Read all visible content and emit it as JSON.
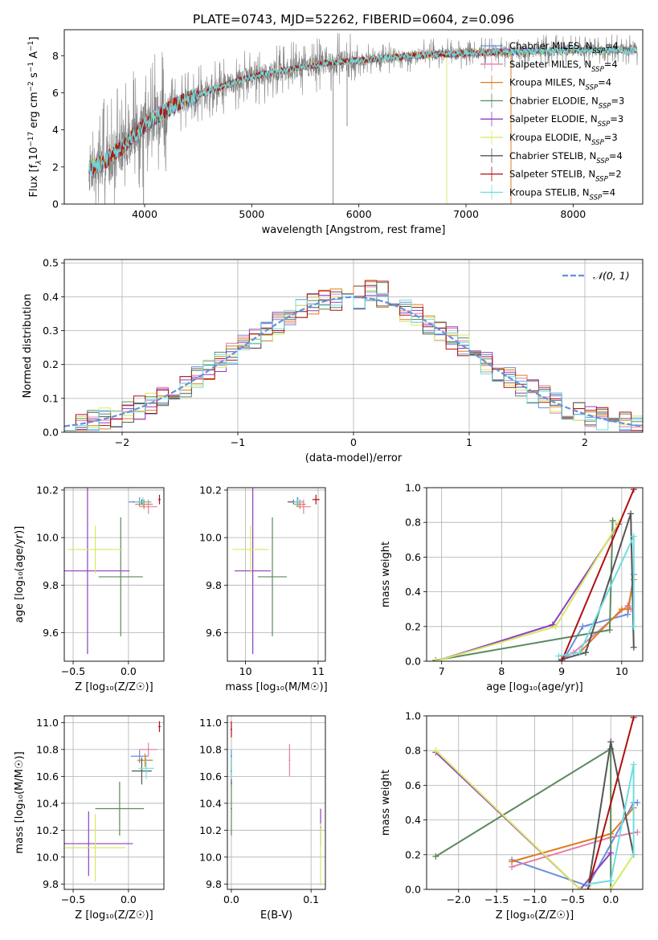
{
  "figure": {
    "title": "PLATE=0743, MJD=52262, FIBERID=0604, z=0.096"
  },
  "colors": {
    "chabrier_miles": "#6a8fdb",
    "salpeter_miles": "#e07faa",
    "kroupa_miles": "#e07c1f",
    "chabrier_elodie": "#5a8a5e",
    "salpeter_elodie": "#8e3fbf",
    "kroupa_elodie": "#d8e860",
    "chabrier_stelib": "#555555",
    "salpeter_stelib": "#b01010",
    "kroupa_stelib": "#6fdde0",
    "data_gray": "#808080",
    "grid": "#b0b0b0"
  },
  "chart_data": [
    {
      "id": "spectrum",
      "type": "line",
      "xlabel": "wavelength [Angstrom, rest frame]",
      "ylabel_parts": [
        "Flux [f",
        "λ",
        "10",
        "−17",
        " erg cm",
        "−2",
        " s",
        "−1",
        " A",
        "−1",
        "]"
      ],
      "xlim": [
        3250,
        8650
      ],
      "ylim": [
        0,
        9.4
      ],
      "xticks": [
        4000,
        5000,
        6000,
        7000,
        8000
      ],
      "yticks": [
        0,
        2,
        4,
        6,
        8
      ],
      "continuum_x": [
        3480,
        3600,
        3800,
        3950,
        4100,
        4300,
        4500,
        4700,
        4900,
        5100,
        5300,
        5500,
        5700,
        5900,
        6100,
        6300,
        6500,
        6700,
        6900,
        7100,
        7300,
        7500,
        7700,
        7900,
        8100,
        8300,
        8500,
        8600
      ],
      "continuum_y": [
        1.9,
        2.2,
        3.1,
        4.0,
        4.7,
        5.4,
        5.9,
        6.3,
        6.7,
        7.0,
        7.2,
        7.4,
        7.6,
        7.7,
        7.8,
        7.9,
        8.0,
        8.05,
        8.1,
        8.15,
        8.2,
        8.2,
        8.25,
        8.3,
        8.3,
        8.3,
        8.3,
        8.3
      ],
      "legend": [
        {
          "label": "Chabrier MILES, N",
          "sub": "SSP",
          "value": "=4",
          "color_key": "chabrier_miles"
        },
        {
          "label": "Salpeter MILES, N",
          "sub": "SSP",
          "value": "=4",
          "color_key": "salpeter_miles"
        },
        {
          "label": "Kroupa MILES, N",
          "sub": "SSP",
          "value": "=4",
          "color_key": "kroupa_miles"
        },
        {
          "label": "Chabrier ELODIE, N",
          "sub": "SSP",
          "value": "=3",
          "color_key": "chabrier_elodie"
        },
        {
          "label": "Salpeter ELODIE, N",
          "sub": "SSP",
          "value": "=3",
          "color_key": "salpeter_elodie"
        },
        {
          "label": "Kroupa ELODIE, N",
          "sub": "SSP",
          "value": "=3",
          "color_key": "kroupa_elodie"
        },
        {
          "label": "Chabrier STELIB, N",
          "sub": "SSP",
          "value": "=4",
          "color_key": "chabrier_stelib"
        },
        {
          "label": "Salpeter STELIB, N",
          "sub": "SSP",
          "value": "=2",
          "color_key": "salpeter_stelib"
        },
        {
          "label": "Kroupa STELIB, N",
          "sub": "SSP",
          "value": "=4",
          "color_key": "kroupa_stelib"
        }
      ]
    },
    {
      "id": "residuals",
      "type": "histogram",
      "xlabel": "(data-model)/error",
      "ylabel": "Normed distribution",
      "xlim": [
        -2.5,
        2.5
      ],
      "ylim": [
        0,
        0.51
      ],
      "xticks": [
        -2,
        -1,
        0,
        1,
        2
      ],
      "xtick_labels": [
        "−2",
        "−1",
        "0",
        "1",
        "2"
      ],
      "yticks": [
        0,
        0.1,
        0.2,
        0.3,
        0.4,
        0.5
      ],
      "ytick_labels": [
        "0.0",
        "0.1",
        "0.2",
        "0.3",
        "0.4",
        "0.5"
      ],
      "bin_width": 0.1,
      "legend": "𝒩(0, 1)",
      "gaussian_color_key": "chabrier_miles"
    },
    {
      "id": "age_vs_Z",
      "type": "errorbar",
      "xlabel": "Z [log₁₀(Z/Z☉)]",
      "ylabel": "age  [log₁₀(age/yr)]",
      "xlim": [
        -0.58,
        0.32
      ],
      "ylim": [
        9.48,
        10.21
      ],
      "xticks": [
        -0.5,
        0.0
      ],
      "xtick_labels": [
        "−0.5",
        "0.0"
      ],
      "yticks": [
        9.6,
        9.8,
        10.0,
        10.2
      ],
      "ytick_labels": [
        "9.6",
        "9.8",
        "10.0",
        "10.2"
      ],
      "points": [
        {
          "key": "chabrier_miles",
          "x": 0.1,
          "xerr": 0.1,
          "y": 10.15,
          "yerr": 0.02
        },
        {
          "key": "salpeter_miles",
          "x": 0.18,
          "xerr": 0.08,
          "y": 10.13,
          "yerr": 0.03
        },
        {
          "key": "kroupa_miles",
          "x": 0.14,
          "xerr": 0.08,
          "y": 10.14,
          "yerr": 0.02
        },
        {
          "key": "chabrier_elodie",
          "x": -0.07,
          "xerr": 0.2,
          "y": 9.835,
          "yerr": 0.25
        },
        {
          "key": "salpeter_elodie",
          "x": -0.37,
          "xerr": 0.38,
          "y": 9.86,
          "yerr": 0.35
        },
        {
          "key": "kroupa_elodie",
          "x": -0.3,
          "xerr": 0.25,
          "y": 9.95,
          "yerr": 0.1
        },
        {
          "key": "chabrier_stelib",
          "x": 0.12,
          "xerr": 0.08,
          "y": 10.15,
          "yerr": 0.01
        },
        {
          "key": "salpeter_stelib",
          "x": 0.28,
          "xerr": 0.01,
          "y": 10.16,
          "yerr": 0.02
        },
        {
          "key": "kroupa_stelib",
          "x": 0.13,
          "xerr": 0.08,
          "y": 10.15,
          "yerr": 0.02
        }
      ]
    },
    {
      "id": "age_vs_mass",
      "type": "errorbar",
      "xlabel": "mass [log₁₀(M/M☉)]",
      "ylabel": "",
      "xlim": [
        9.75,
        11.1
      ],
      "ylim": [
        9.48,
        10.21
      ],
      "xticks": [
        10,
        11
      ],
      "xtick_labels": [
        "10",
        "11"
      ],
      "yticks": [
        9.6,
        9.8,
        10.0,
        10.2
      ],
      "ytick_labels": [
        "9.6",
        "9.8",
        "10.0",
        "10.2"
      ],
      "points": [
        {
          "key": "chabrier_miles",
          "x": 10.72,
          "xerr": 0.08,
          "y": 10.15,
          "yerr": 0.02
        },
        {
          "key": "salpeter_miles",
          "x": 10.8,
          "xerr": 0.1,
          "y": 10.13,
          "yerr": 0.03
        },
        {
          "key": "kroupa_miles",
          "x": 10.75,
          "xerr": 0.08,
          "y": 10.14,
          "yerr": 0.02
        },
        {
          "key": "chabrier_elodie",
          "x": 10.37,
          "xerr": 0.2,
          "y": 9.835,
          "yerr": 0.25
        },
        {
          "key": "salpeter_elodie",
          "x": 10.1,
          "xerr": 0.25,
          "y": 9.86,
          "yerr": 0.35
        },
        {
          "key": "kroupa_elodie",
          "x": 10.07,
          "xerr": 0.25,
          "y": 9.95,
          "yerr": 0.1
        },
        {
          "key": "chabrier_stelib",
          "x": 10.66,
          "xerr": 0.08,
          "y": 10.15,
          "yerr": 0.01
        },
        {
          "key": "salpeter_stelib",
          "x": 10.97,
          "xerr": 0.05,
          "y": 10.16,
          "yerr": 0.02
        },
        {
          "key": "kroupa_stelib",
          "x": 10.71,
          "xerr": 0.06,
          "y": 10.15,
          "yerr": 0.02
        }
      ]
    },
    {
      "id": "mass_weight_vs_age",
      "type": "line",
      "xlabel": "age  [log₁₀(age/yr)]",
      "ylabel": "mass weight",
      "xlim": [
        6.75,
        10.35
      ],
      "ylim": [
        0,
        1
      ],
      "xticks": [
        7,
        8,
        9,
        10
      ],
      "xtick_labels": [
        "7",
        "8",
        "9",
        "10"
      ],
      "yticks": [
        0,
        0.2,
        0.4,
        0.6,
        0.8,
        1.0
      ],
      "ytick_labels": [
        "0.0",
        "0.2",
        "0.4",
        "0.6",
        "0.8",
        "1.0"
      ],
      "series": [
        {
          "key": "chabrier_miles",
          "x": [
            9.05,
            9.35,
            10.1,
            10.2
          ],
          "y": [
            0.02,
            0.2,
            0.27,
            0.5
          ]
        },
        {
          "key": "salpeter_miles",
          "x": [
            8.95,
            9.2,
            10.1,
            10.15
          ],
          "y": [
            0.0,
            0.05,
            0.32,
            0.3
          ]
        },
        {
          "key": "kroupa_miles",
          "x": [
            9.3,
            10.0,
            10.1,
            10.2
          ],
          "y": [
            0.05,
            0.3,
            0.3,
            0.47
          ]
        },
        {
          "key": "chabrier_elodie",
          "x": [
            6.9,
            9.8,
            9.85
          ],
          "y": [
            0.005,
            0.18,
            0.81
          ]
        },
        {
          "key": "salpeter_elodie",
          "x": [
            6.9,
            8.85,
            9.95
          ],
          "y": [
            0.0,
            0.21,
            0.79
          ]
        },
        {
          "key": "kroupa_elodie",
          "x": [
            6.9,
            8.9,
            9.95
          ],
          "y": [
            0.0,
            0.2,
            0.8
          ]
        },
        {
          "key": "chabrier_stelib",
          "x": [
            9.0,
            9.4,
            10.15,
            10.2
          ],
          "y": [
            0.01,
            0.05,
            0.85,
            0.08
          ]
        },
        {
          "key": "salpeter_stelib",
          "x": [
            9.0,
            10.2
          ],
          "y": [
            0.0,
            0.99
          ]
        },
        {
          "key": "kroupa_stelib",
          "x": [
            8.95,
            9.3,
            10.2,
            10.2
          ],
          "y": [
            0.03,
            0.05,
            0.72,
            0.2
          ]
        }
      ]
    },
    {
      "id": "mass_vs_Z",
      "type": "errorbar",
      "xlabel": "Z [log₁₀(Z/Z☉)]",
      "ylabel": "mass [log₁₀(M/M☉)]",
      "xlim": [
        -0.58,
        0.32
      ],
      "ylim": [
        9.76,
        11.05
      ],
      "xticks": [
        -0.5,
        0.0
      ],
      "xtick_labels": [
        "−0.5",
        "0.0"
      ],
      "yticks": [
        9.8,
        10.0,
        10.2,
        10.4,
        10.6,
        10.8,
        11.0
      ],
      "ytick_labels": [
        "9.8",
        "10.0",
        "10.2",
        "10.4",
        "10.6",
        "10.8",
        "11.0"
      ],
      "points": [
        {
          "key": "chabrier_miles",
          "x": 0.1,
          "xerr": 0.08,
          "y": 10.75,
          "yerr": 0.05
        },
        {
          "key": "salpeter_miles",
          "x": 0.18,
          "xerr": 0.08,
          "y": 10.8,
          "yerr": 0.05
        },
        {
          "key": "kroupa_miles",
          "x": 0.15,
          "xerr": 0.07,
          "y": 10.72,
          "yerr": 0.05
        },
        {
          "key": "chabrier_elodie",
          "x": -0.08,
          "xerr": 0.22,
          "y": 10.36,
          "yerr": 0.2
        },
        {
          "key": "salpeter_elodie",
          "x": -0.36,
          "xerr": 0.4,
          "y": 10.1,
          "yerr": 0.24
        },
        {
          "key": "kroupa_elodie",
          "x": -0.3,
          "xerr": 0.27,
          "y": 10.07,
          "yerr": 0.25
        },
        {
          "key": "chabrier_stelib",
          "x": 0.12,
          "xerr": 0.09,
          "y": 10.64,
          "yerr": 0.1
        },
        {
          "key": "salpeter_stelib",
          "x": 0.28,
          "xerr": 0.01,
          "y": 10.97,
          "yerr": 0.04
        },
        {
          "key": "kroupa_stelib",
          "x": 0.16,
          "xerr": 0.07,
          "y": 10.66,
          "yerr": 0.08
        }
      ]
    },
    {
      "id": "mass_vs_ebv",
      "type": "errorbar",
      "xlabel": "E(B-V)",
      "ylabel": "",
      "xlim": [
        -0.005,
        0.118
      ],
      "ylim": [
        9.76,
        11.05
      ],
      "xticks": [
        0.0,
        0.1
      ],
      "xtick_labels": [
        "0.0",
        "0.1"
      ],
      "yticks": [
        9.8,
        10.0,
        10.2,
        10.4,
        10.6,
        10.8,
        11.0
      ],
      "ytick_labels": [
        "9.8",
        "10.0",
        "10.2",
        "10.4",
        "10.6",
        "10.8",
        "11.0"
      ],
      "points": [
        {
          "key": "chabrier_miles",
          "x": 0.0,
          "xerr": 0.001,
          "y": 10.75,
          "yerr": 0.05
        },
        {
          "key": "salpeter_miles",
          "x": 0.073,
          "xerr": 0.001,
          "y": 10.72,
          "yerr": 0.12
        },
        {
          "key": "kroupa_miles",
          "x": 0.0,
          "xerr": 0.001,
          "y": 10.66,
          "yerr": 0.05
        },
        {
          "key": "chabrier_elodie",
          "x": 0.0,
          "xerr": 0.001,
          "y": 10.36,
          "yerr": 0.2
        },
        {
          "key": "salpeter_elodie",
          "x": 0.112,
          "xerr": 0.001,
          "y": 10.22,
          "yerr": 0.14
        },
        {
          "key": "kroupa_elodie",
          "x": 0.112,
          "xerr": 0.001,
          "y": 10.02,
          "yerr": 0.23
        },
        {
          "key": "chabrier_stelib",
          "x": 0.0,
          "xerr": 0.001,
          "y": 10.64,
          "yerr": 0.1
        },
        {
          "key": "salpeter_stelib",
          "x": 0.0,
          "xerr": 0.001,
          "y": 10.95,
          "yerr": 0.06
        },
        {
          "key": "kroupa_stelib",
          "x": 0.0,
          "xerr": 0.001,
          "y": 10.66,
          "yerr": 0.08
        }
      ]
    },
    {
      "id": "mass_weight_vs_Z",
      "type": "line",
      "xlabel": "Z [log₁₀(Z/Z☉)]",
      "ylabel": "mass weight",
      "xlim": [
        -2.42,
        0.42
      ],
      "ylim": [
        0,
        1
      ],
      "xticks": [
        -2.0,
        -1.5,
        -1.0,
        -0.5,
        0.0
      ],
      "xtick_labels": [
        "−2.0",
        "−1.5",
        "−1.0",
        "−0.5",
        "0.0"
      ],
      "yticks": [
        0,
        0.2,
        0.4,
        0.6,
        0.8,
        1.0
      ],
      "ytick_labels": [
        "0.0",
        "0.2",
        "0.4",
        "0.6",
        "0.8",
        "1.0"
      ],
      "series": [
        {
          "key": "chabrier_miles",
          "x": [
            -1.3,
            -0.3,
            0.3,
            0.35
          ],
          "y": [
            0.17,
            0.02,
            0.5,
            0.5
          ]
        },
        {
          "key": "salpeter_miles",
          "x": [
            -1.3,
            0.0,
            0.35
          ],
          "y": [
            0.13,
            0.3,
            0.33
          ]
        },
        {
          "key": "kroupa_miles",
          "x": [
            -1.3,
            0.0,
            0.3
          ],
          "y": [
            0.16,
            0.32,
            0.47
          ]
        },
        {
          "key": "chabrier_elodie",
          "x": [
            -2.3,
            0.0,
            0.0
          ],
          "y": [
            0.19,
            0.81,
            0.0
          ]
        },
        {
          "key": "salpeter_elodie",
          "x": [
            -2.3,
            -0.4,
            0.0
          ],
          "y": [
            0.79,
            0.0,
            0.21
          ]
        },
        {
          "key": "kroupa_elodie",
          "x": [
            -2.3,
            -0.4,
            0.0,
            0.3
          ],
          "y": [
            0.8,
            0.0,
            0.0,
            0.2
          ]
        },
        {
          "key": "chabrier_stelib",
          "x": [
            -0.3,
            0.0,
            0.3
          ],
          "y": [
            0.0,
            0.85,
            0.2
          ]
        },
        {
          "key": "salpeter_stelib",
          "x": [
            -0.3,
            0.3
          ],
          "y": [
            0.0,
            0.99
          ]
        },
        {
          "key": "kroupa_stelib",
          "x": [
            -0.3,
            0.0,
            0.3,
            0.3
          ],
          "y": [
            0.03,
            0.05,
            0.72,
            0.2
          ]
        }
      ]
    }
  ]
}
